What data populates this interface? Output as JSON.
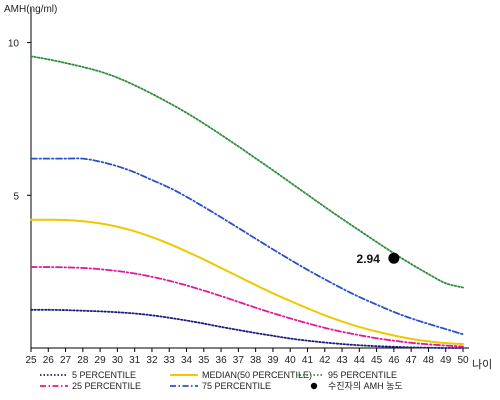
{
  "chart_data": {
    "type": "line",
    "title": "",
    "ylabel": "AMH(ng/ml)",
    "xlabel": "나이",
    "x": [
      25,
      26,
      27,
      28,
      29,
      30,
      31,
      32,
      33,
      34,
      35,
      36,
      37,
      38,
      39,
      40,
      41,
      42,
      43,
      44,
      45,
      46,
      47,
      48,
      49,
      50
    ],
    "x_tick_labels": [
      "25",
      "26",
      "27",
      "28",
      "29",
      "30",
      "31",
      "32",
      "33",
      "34",
      "35",
      "36",
      "37",
      "38",
      "39",
      "40",
      "41",
      "42",
      "43",
      "44",
      "45",
      "46",
      "47",
      "48",
      "49",
      "50"
    ],
    "xlim": [
      25,
      50
    ],
    "ylim": [
      0,
      11
    ],
    "y_ticks": [
      5,
      10
    ],
    "y_tick_labels": [
      "5",
      "10"
    ],
    "grid": false,
    "legend_position": "bottom",
    "series": [
      {
        "name": "5 PERCENTILE",
        "color": "#1a1a80",
        "style": "dotted",
        "values": [
          1.25,
          1.25,
          1.24,
          1.22,
          1.2,
          1.17,
          1.13,
          1.07,
          0.99,
          0.9,
          0.8,
          0.69,
          0.59,
          0.49,
          0.4,
          0.31,
          0.24,
          0.18,
          0.13,
          0.09,
          0.06,
          0.04,
          0.02,
          0.01,
          0.0,
          0.0
        ]
      },
      {
        "name": "25 PERCENTILE",
        "color": "#e0199a",
        "style": "dashdot",
        "values": [
          2.65,
          2.65,
          2.64,
          2.62,
          2.58,
          2.52,
          2.44,
          2.33,
          2.2,
          2.05,
          1.88,
          1.7,
          1.51,
          1.32,
          1.14,
          0.97,
          0.81,
          0.66,
          0.53,
          0.42,
          0.32,
          0.24,
          0.17,
          0.12,
          0.08,
          0.05
        ]
      },
      {
        "name": "MEDIAN(50 PERCENTILE)",
        "color": "#f0c800",
        "style": "solid",
        "values": [
          4.2,
          4.2,
          4.19,
          4.15,
          4.08,
          3.97,
          3.82,
          3.63,
          3.41,
          3.16,
          2.9,
          2.62,
          2.34,
          2.06,
          1.79,
          1.54,
          1.3,
          1.07,
          0.87,
          0.69,
          0.54,
          0.41,
          0.3,
          0.22,
          0.16,
          0.13
        ]
      },
      {
        "name": "75 PERCENTILE",
        "color": "#2a50c8",
        "style": "dashdot",
        "values": [
          6.2,
          6.2,
          6.2,
          6.2,
          6.1,
          5.95,
          5.75,
          5.5,
          5.25,
          4.95,
          4.62,
          4.28,
          3.93,
          3.58,
          3.23,
          2.89,
          2.56,
          2.25,
          1.95,
          1.67,
          1.42,
          1.18,
          0.97,
          0.79,
          0.62,
          0.45
        ]
      },
      {
        "name": "95 PERCENTILE",
        "color": "#2e8b3d",
        "style": "dotted",
        "values": [
          9.55,
          9.45,
          9.33,
          9.2,
          9.05,
          8.85,
          8.6,
          8.32,
          8.02,
          7.7,
          7.35,
          6.98,
          6.6,
          6.21,
          5.82,
          5.42,
          5.02,
          4.62,
          4.23,
          3.85,
          3.47,
          3.1,
          2.75,
          2.42,
          2.12,
          1.98
        ]
      }
    ],
    "highlight_point": {
      "name": "수진자의 AMH 농도",
      "x": 46,
      "y": 2.94,
      "label": "2.94",
      "color": "#000000"
    },
    "legend": [
      {
        "label": "5 PERCENTILE",
        "color": "#1a1a80",
        "style": "dotted"
      },
      {
        "label": "25 PERCENTILE",
        "color": "#e0199a",
        "style": "dashdot"
      },
      {
        "label": "MEDIAN(50 PERCENTILE)",
        "color": "#f0c800",
        "style": "solid"
      },
      {
        "label": "75 PERCENTILE",
        "color": "#2a50c8",
        "style": "dashdot"
      },
      {
        "label": "95 PERCENTILE",
        "color": "#2e8b3d",
        "style": "dotted"
      },
      {
        "label": "수진자의 AMH 농도",
        "color": "#000000",
        "style": "marker"
      }
    ]
  }
}
